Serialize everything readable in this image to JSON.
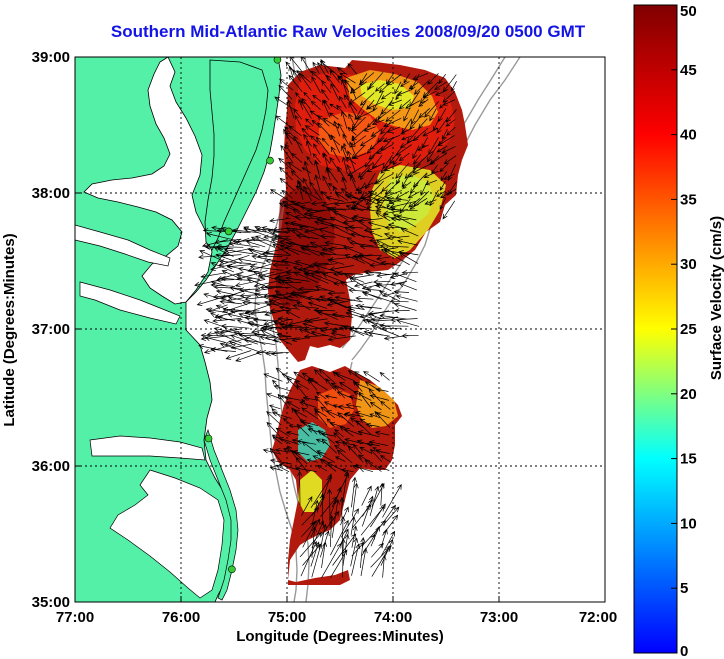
{
  "title": "Southern Mid-Atlantic Raw Velocities 2008/09/20 0500 GMT",
  "xlabel": "Longitude (Degrees:Minutes)",
  "ylabel": "Latitude (Degrees:Minutes)",
  "x_ticks": [
    {
      "label": "77:00",
      "value": -77
    },
    {
      "label": "76:00",
      "value": -76
    },
    {
      "label": "75:00",
      "value": -75
    },
    {
      "label": "74:00",
      "value": -74
    },
    {
      "label": "73:00",
      "value": -73
    },
    {
      "label": "72:00",
      "value": -72
    }
  ],
  "y_ticks": [
    {
      "label": "39:00",
      "value": 39
    },
    {
      "label": "38:00",
      "value": 38
    },
    {
      "label": "37:00",
      "value": 37
    },
    {
      "label": "36:00",
      "value": 36
    },
    {
      "label": "35:00",
      "value": 35
    }
  ],
  "colorbar": {
    "label": "Surface Velocity (cm/s)",
    "min": 0,
    "max": 50,
    "ticks": [
      {
        "label": "50",
        "value": 50
      },
      {
        "label": "45",
        "value": 45
      },
      {
        "label": "40",
        "value": 40
      },
      {
        "label": "35",
        "value": 35
      },
      {
        "label": "30",
        "value": 30
      },
      {
        "label": "25",
        "value": 25
      },
      {
        "label": "20",
        "value": 20
      },
      {
        "label": "15",
        "value": 15
      },
      {
        "label": "10",
        "value": 10
      },
      {
        "label": "5",
        "value": 5
      },
      {
        "label": "0",
        "value": 0
      }
    ],
    "colors": [
      "#0000ff",
      "#00ffff",
      "#ffff00",
      "#ff0000",
      "#800000"
    ]
  },
  "colors": {
    "land": "#55f0a8",
    "coast_line": "#000000",
    "bathymetry": "#999999",
    "grid": "#000000",
    "station": "#33cc33",
    "title": "#1414e6"
  },
  "chart_data": {
    "type": "map",
    "xlim": [
      -77,
      -72
    ],
    "ylim": [
      35,
      39
    ],
    "grid": true,
    "map_elements": [
      "land (Delmarva, Chesapeake Bay, Virginia, North Carolina)",
      "bathymetry contours",
      "surface current vectors",
      "velocity magnitude field"
    ],
    "stations": [
      {
        "lon": -75.09,
        "lat": 38.98
      },
      {
        "lon": -75.16,
        "lat": 38.24
      },
      {
        "lon": -75.55,
        "lat": 37.72
      },
      {
        "lon": -75.74,
        "lat": 36.2
      },
      {
        "lon": -75.52,
        "lat": 35.24
      }
    ]
  }
}
